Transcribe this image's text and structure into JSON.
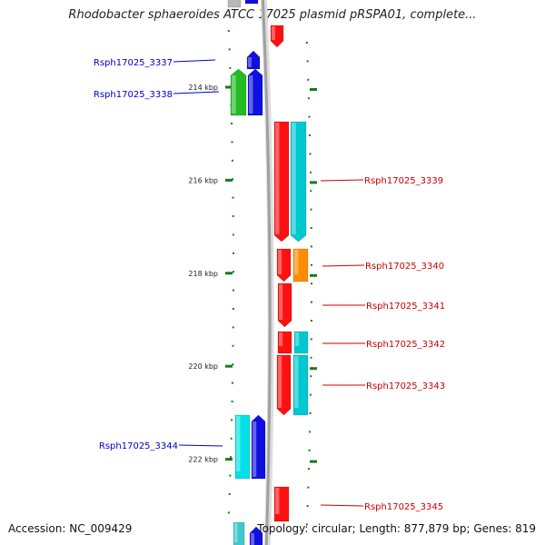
{
  "title": "Rhodobacter sphaeroides ATCC 17025 plasmid pRSPA01, complete...",
  "footer": {
    "accession": "Accession: NC_009429",
    "summary": "Topology: circular; Length: 877,879 bp; Genes: 819"
  },
  "colors": {
    "backbone": "#a0a0a0",
    "tick": "#1a7a1a",
    "left_label": "#0000cc",
    "right_label": "#cc0000"
  },
  "scale": {
    "unit": "kbp",
    "ticks": [
      {
        "value": 214,
        "label": "214 kbp"
      },
      {
        "value": 216,
        "label": "216 kbp"
      },
      {
        "value": 218,
        "label": "218 kbp"
      },
      {
        "value": 220,
        "label": "220 kbp"
      },
      {
        "value": 222,
        "label": "222 kbp"
      }
    ]
  },
  "genes": [
    {
      "id": "Rsph17025_3337",
      "label": "Rsph17025_3337",
      "side": "left"
    },
    {
      "id": "Rsph17025_3338",
      "label": "Rsph17025_3338",
      "side": "left"
    },
    {
      "id": "Rsph17025_3339",
      "label": "Rsph17025_3339",
      "side": "right"
    },
    {
      "id": "Rsph17025_3340",
      "label": "Rsph17025_3340",
      "side": "right"
    },
    {
      "id": "Rsph17025_3341",
      "label": "Rsph17025_3341",
      "side": "right"
    },
    {
      "id": "Rsph17025_3342",
      "label": "Rsph17025_3342",
      "side": "right"
    },
    {
      "id": "Rsph17025_3343",
      "label": "Rsph17025_3343",
      "side": "right"
    },
    {
      "id": "Rsph17025_3344",
      "label": "Rsph17025_3344",
      "side": "left"
    },
    {
      "id": "Rsph17025_3345",
      "label": "Rsph17025_3345",
      "side": "right"
    }
  ]
}
